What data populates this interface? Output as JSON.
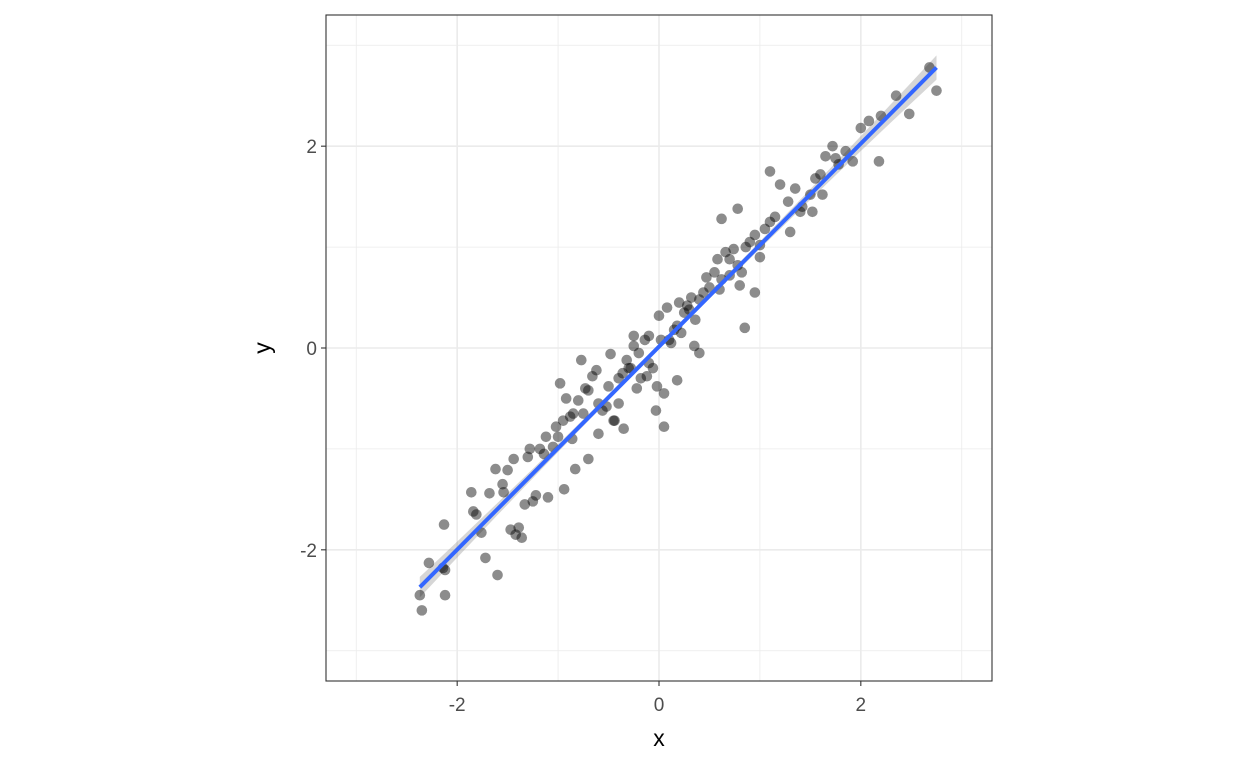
{
  "chart_data": {
    "type": "scatter",
    "title": "",
    "xlabel": "x",
    "ylabel": "y",
    "xlim": [
      -3.3,
      3.3
    ],
    "ylim": [
      -3.3,
      3.3
    ],
    "x_ticks": [
      -2,
      0,
      2
    ],
    "x_tick_labels": [
      "-2",
      "0",
      "2"
    ],
    "y_ticks": [
      -2,
      0,
      2
    ],
    "y_tick_labels": [
      "-2",
      "0",
      "2"
    ],
    "grid": true,
    "theme": "bw",
    "points_color": "#000000",
    "points_opacity": 0.45,
    "fit_line": {
      "x": [
        -2.37,
        2.75
      ],
      "y": [
        -2.37,
        2.78
      ],
      "color": "#3366ff",
      "confidence_band": true
    },
    "series": [
      {
        "x": [
          -2.37,
          -2.35,
          -2.28,
          -2.14,
          -2.13,
          -2.12,
          -2.12,
          -1.86,
          -1.84,
          -1.81,
          -1.76,
          -1.72,
          -1.68,
          -1.62,
          -1.6,
          -1.54,
          -1.5,
          -1.47,
          -1.44,
          -1.42,
          -1.39,
          -1.36,
          -1.33,
          -1.3,
          -1.25,
          -1.22,
          -1.18,
          -1.14,
          -1.12,
          -1.05,
          -1.02,
          -0.98,
          -0.95,
          -0.94,
          -0.92,
          -0.88,
          -0.86,
          -0.83,
          -0.8,
          -0.77,
          -0.73,
          -0.7,
          -0.66,
          -0.62,
          -0.6,
          -0.56,
          -0.52,
          -0.48,
          -0.44,
          -0.4,
          -0.36,
          -0.32,
          -0.28,
          -0.25,
          -0.22,
          -0.18,
          -0.14,
          -0.1,
          -0.06,
          -0.02,
          0.02,
          0.05,
          0.08,
          0.12,
          0.15,
          0.18,
          0.22,
          0.25,
          0.28,
          0.32,
          0.36,
          0.4,
          0.44,
          0.47,
          0.5,
          0.55,
          0.58,
          0.62,
          0.66,
          0.7,
          0.74,
          0.78,
          0.82,
          0.86,
          0.9,
          0.95,
          1.0,
          1.05,
          1.1,
          1.15,
          1.2,
          1.28,
          1.35,
          1.42,
          1.5,
          1.55,
          1.6,
          1.65,
          1.72,
          1.78,
          1.85,
          1.92,
          2.0,
          2.08,
          2.18,
          2.2,
          2.35,
          2.48,
          2.68,
          2.75,
          0.0,
          0.1,
          0.2,
          0.3,
          -0.3,
          -0.2,
          -0.1,
          0.6,
          0.7,
          0.8,
          -0.5,
          -0.4,
          1.0,
          1.3,
          -1.0,
          -0.7,
          1.52,
          1.75,
          0.85,
          0.4,
          -0.12,
          -0.45,
          0.18,
          0.95,
          -0.85,
          -0.6,
          1.1,
          -1.28,
          -0.03,
          0.35,
          0.78,
          -0.35,
          1.4,
          -1.55,
          -0.75,
          0.62,
          0.05,
          -0.25,
          1.62,
          -1.1
        ],
        "y": [
          -2.45,
          -2.6,
          -2.13,
          -2.18,
          -1.75,
          -2.2,
          -2.45,
          -1.43,
          -1.62,
          -1.65,
          -1.83,
          -2.08,
          -1.44,
          -1.2,
          -2.25,
          -1.43,
          -1.21,
          -1.8,
          -1.1,
          -1.85,
          -1.78,
          -1.88,
          -1.55,
          -1.08,
          -1.52,
          -1.46,
          -1.0,
          -1.05,
          -0.88,
          -0.98,
          -0.78,
          -0.35,
          -0.72,
          -1.4,
          -0.5,
          -0.68,
          -0.9,
          -1.2,
          -0.52,
          -0.12,
          -0.4,
          -1.1,
          -0.28,
          -0.22,
          -0.55,
          -0.62,
          -0.58,
          -0.06,
          -0.72,
          -0.55,
          -0.25,
          -0.12,
          -0.2,
          0.12,
          -0.4,
          -0.3,
          0.08,
          -0.15,
          -0.2,
          -0.38,
          0.08,
          -0.45,
          0.4,
          0.05,
          0.18,
          0.22,
          0.15,
          0.35,
          0.42,
          0.5,
          0.28,
          0.48,
          0.55,
          0.7,
          0.6,
          0.75,
          0.88,
          0.68,
          0.95,
          0.72,
          0.98,
          0.82,
          0.75,
          1.0,
          1.05,
          1.12,
          0.9,
          1.18,
          1.25,
          1.3,
          1.62,
          1.45,
          1.58,
          1.4,
          1.52,
          1.68,
          1.72,
          1.9,
          2.0,
          1.82,
          1.95,
          1.85,
          2.18,
          2.25,
          1.85,
          2.3,
          2.5,
          2.32,
          2.78,
          2.55,
          0.32,
          0.08,
          0.45,
          0.38,
          -0.2,
          -0.05,
          0.12,
          0.58,
          0.88,
          0.62,
          -0.38,
          -0.3,
          1.02,
          1.15,
          -0.88,
          -0.42,
          1.35,
          1.88,
          0.2,
          -0.05,
          -0.28,
          -0.72,
          -0.32,
          0.55,
          -0.65,
          -0.85,
          1.75,
          -1.0,
          -0.62,
          0.02,
          1.38,
          -0.8,
          1.35,
          -1.35,
          -0.65,
          1.28,
          -0.78,
          0.02,
          1.52,
          -1.48
        ]
      }
    ]
  }
}
